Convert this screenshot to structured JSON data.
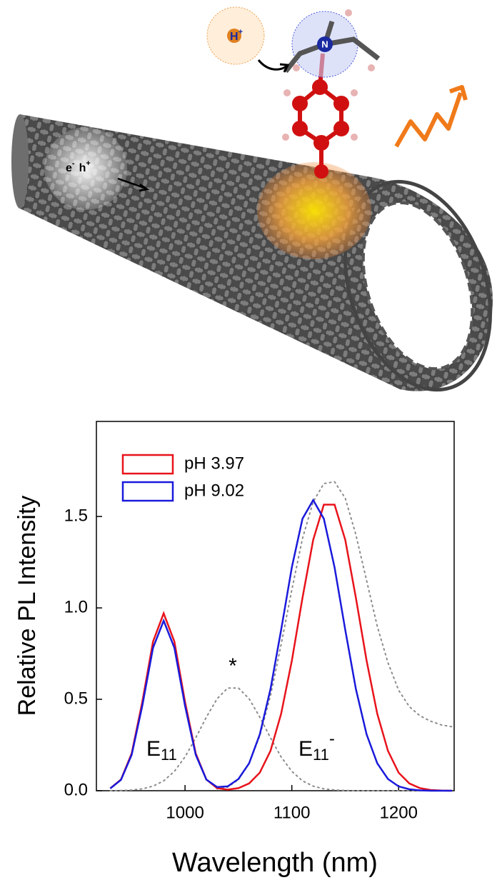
{
  "illustration": {
    "proton": "H",
    "proton_charge": "+",
    "nitrogen": "N",
    "electron": "e",
    "electron_charge": "-",
    "hole": "h",
    "hole_charge": "+"
  },
  "chart_data": {
    "type": "line",
    "x_label": "Wavelength (nm)",
    "y_label": "Relative PL Intensity",
    "x": [
      930,
      940,
      950,
      960,
      970,
      980,
      990,
      1000,
      1010,
      1020,
      1030,
      1040,
      1050,
      1060,
      1070,
      1080,
      1090,
      1100,
      1110,
      1120,
      1130,
      1140,
      1150,
      1160,
      1170,
      1180,
      1190,
      1200,
      1210,
      1220,
      1230,
      1240,
      1250
    ],
    "series": [
      {
        "name": "pH 3.97",
        "color": "#e8131b",
        "values": [
          0.013,
          0.061,
          0.204,
          0.486,
          0.816,
          0.97,
          0.816,
          0.486,
          0.204,
          0.061,
          0.014,
          0.006,
          0.014,
          0.04,
          0.099,
          0.218,
          0.421,
          0.711,
          1.055,
          1.372,
          1.565,
          1.565,
          1.372,
          1.055,
          0.711,
          0.421,
          0.218,
          0.099,
          0.04,
          0.014,
          0.004,
          0.001,
          0
        ]
      },
      {
        "name": "pH 9.02",
        "color": "#1a1adb",
        "values": [
          0.012,
          0.059,
          0.196,
          0.465,
          0.782,
          0.93,
          0.782,
          0.465,
          0.196,
          0.061,
          0.02,
          0.024,
          0.064,
          0.15,
          0.308,
          0.556,
          0.88,
          1.222,
          1.488,
          1.59,
          1.488,
          1.222,
          0.88,
          0.556,
          0.308,
          0.15,
          0.064,
          0.024,
          0.008,
          0.002,
          0,
          0,
          0
        ]
      }
    ],
    "fit_curves": [
      {
        "color": "#8c8c8c",
        "values": [
          0,
          0.001,
          0.004,
          0.01,
          0.025,
          0.054,
          0.106,
          0.185,
          0.289,
          0.403,
          0.503,
          0.562,
          0.562,
          0.503,
          0.403,
          0.289,
          0.185,
          0.106,
          0.054,
          0.025,
          0.01,
          0.004,
          0.001,
          0,
          0,
          0,
          0,
          0,
          0,
          0,
          0,
          0,
          0
        ]
      },
      {
        "color": "#8c8c8c",
        "values": [
          null,
          null,
          null,
          null,
          null,
          null,
          null,
          null,
          null,
          null,
          0.01,
          0.02,
          0.06,
          0.15,
          0.3,
          0.52,
          0.8,
          1.1,
          1.38,
          1.58,
          1.68,
          1.69,
          1.6,
          1.4,
          1.15,
          0.9,
          0.7,
          0.55,
          0.46,
          0.41,
          0.38,
          0.36,
          0.35
        ]
      }
    ],
    "annotations": {
      "peak_base": "E",
      "peak_sub": "11",
      "defect_base": "E",
      "defect_sub": "11",
      "defect_sup": "-",
      "star": "*"
    },
    "xlim": [
      917,
      1252
    ],
    "ylim": [
      0,
      2.02
    ],
    "xticks": [
      1000,
      1100,
      1200
    ],
    "yticks": [
      {
        "value": 0,
        "label": "0.0"
      },
      0.5,
      {
        "value": 1,
        "label": "1.0"
      },
      1.5
    ],
    "legend": "upper left"
  }
}
